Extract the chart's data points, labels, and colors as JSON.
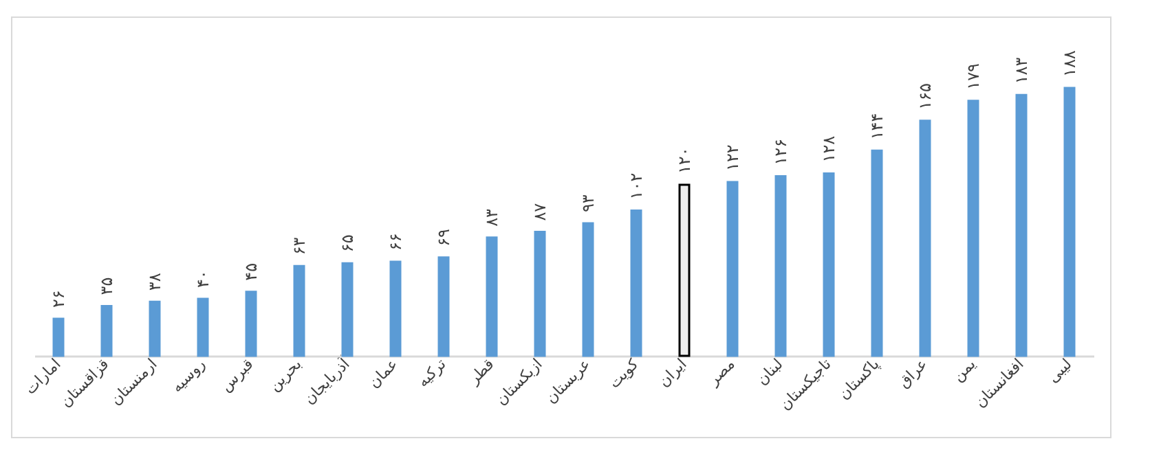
{
  "chart_data": {
    "type": "bar",
    "relative": false,
    "categories": [
      "امارات",
      "قزاقستان",
      "ارمنستان",
      "روسیه",
      "قبرس",
      "بحرین",
      "آذربایجان",
      "عمان",
      "ترکیه",
      "قطر",
      "ازبکستان",
      "عربستان",
      "کویت",
      "ایران",
      "مصر",
      "لبنان",
      "تاجیکستان",
      "پاکستان",
      "عراق",
      "یمن",
      "افغانستان",
      "لیبی"
    ],
    "values": [
      26,
      35,
      38,
      40,
      45,
      63,
      65,
      66,
      69,
      83,
      87,
      93,
      102,
      120,
      122,
      126,
      128,
      144,
      165,
      179,
      183,
      188
    ],
    "value_labels": [
      "۲۶",
      "۳۵",
      "۳۸",
      "۴۰",
      "۴۵",
      "۶۳",
      "۶۵",
      "۶۶",
      "۶۹",
      "۸۳",
      "۸۷",
      "۹۳",
      "۱۰۲",
      "۱۲۰",
      "۱۲۲",
      "۱۲۶",
      "۱۲۸",
      "۱۴۴",
      "۱۶۵",
      "۱۷۹",
      "۱۸۳",
      "۱۸۸"
    ],
    "colors": [
      "#5b9bd5",
      "#5b9bd5",
      "#5b9bd5",
      "#5b9bd5",
      "#5b9bd5",
      "#5b9bd5",
      "#5b9bd5",
      "#5b9bd5",
      "#5b9bd5",
      "#5b9bd5",
      "#5b9bd5",
      "#5b9bd5",
      "#5b9bd5",
      "#eeeeee",
      "#5b9bd5",
      "#5b9bd5",
      "#5b9bd5",
      "#5b9bd5",
      "#5b9bd5",
      "#5b9bd5",
      "#5b9bd5",
      "#5b9bd5"
    ],
    "grid": false
  }
}
